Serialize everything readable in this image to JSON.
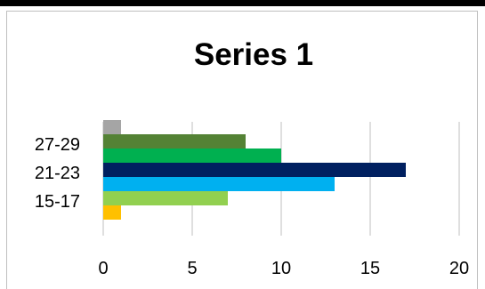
{
  "chart_data": {
    "type": "bar",
    "orientation": "horizontal",
    "title": "Series 1",
    "xlabel": "",
    "ylabel": "",
    "xlim": [
      0,
      20
    ],
    "x_ticks": [
      0,
      5,
      10,
      15,
      20
    ],
    "grid": true,
    "legend": "none",
    "category_labels_shown": [
      "15-17",
      "21-23",
      "27-29"
    ],
    "bars": [
      {
        "value": 1,
        "color": "#FFC000"
      },
      {
        "value": 7,
        "color": "#92D050"
      },
      {
        "value": 13,
        "color": "#00B0F0"
      },
      {
        "value": 17,
        "color": "#002060"
      },
      {
        "value": 10,
        "color": "#00B050"
      },
      {
        "value": 8,
        "color": "#548235"
      },
      {
        "value": 1,
        "color": "#A5A5A5"
      }
    ]
  }
}
